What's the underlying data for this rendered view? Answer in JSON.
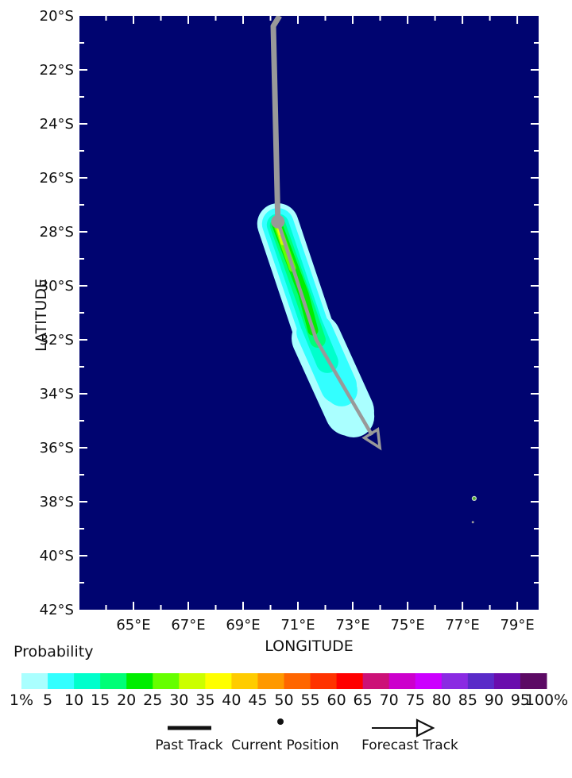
{
  "colors": {
    "page_bg": "#ffffff",
    "map_bg": "#000470",
    "track_gray": "#999999",
    "tick_white": "#ffffff",
    "text": "#111111"
  },
  "chart_data": {
    "type": "probability-swath-map",
    "xlabel": "LONGITUDE",
    "ylabel": "LATITUDE",
    "lon_axis": {
      "range": [
        63.03,
        79.78
      ],
      "minor_step": 1,
      "ticks": [
        {
          "deg": 65,
          "label": "65°E"
        },
        {
          "deg": 67,
          "label": "67°E"
        },
        {
          "deg": 69,
          "label": "69°E"
        },
        {
          "deg": 71,
          "label": "71°E"
        },
        {
          "deg": 73,
          "label": "73°E"
        },
        {
          "deg": 75,
          "label": "75°E"
        },
        {
          "deg": 77,
          "label": "77°E"
        },
        {
          "deg": 79,
          "label": "79°E"
        }
      ]
    },
    "lat_axis": {
      "range": [
        20,
        42
      ],
      "minor_step": 1,
      "ticks": [
        {
          "deg": 20,
          "label": "20°S"
        },
        {
          "deg": 22,
          "label": "22°S"
        },
        {
          "deg": 24,
          "label": "24°S"
        },
        {
          "deg": 26,
          "label": "26°S"
        },
        {
          "deg": 28,
          "label": "28°S"
        },
        {
          "deg": 30,
          "label": "30°S"
        },
        {
          "deg": 32,
          "label": "32°S"
        },
        {
          "deg": 34,
          "label": "34°S"
        },
        {
          "deg": 36,
          "label": "36°S"
        },
        {
          "deg": 38,
          "label": "38°S"
        },
        {
          "deg": 40,
          "label": "40°S"
        },
        {
          "deg": 42,
          "label": "42°S"
        }
      ]
    },
    "track": {
      "past_points": [
        [
          70.33,
          20.0
        ],
        [
          70.1,
          20.38
        ],
        [
          70.27,
          27.62
        ]
      ],
      "current_position": [
        70.27,
        27.62
      ],
      "forecast_points": [
        [
          70.27,
          27.62
        ],
        [
          71.67,
          32.0
        ],
        [
          73.7,
          35.53
        ]
      ],
      "arrow_tip": [
        73.99,
        36.0
      ]
    },
    "swath": {
      "layers": [
        {
          "probability_pct": 1,
          "color": "#aaffff",
          "width_deg": 1.51,
          "points": [
            [
              70.27,
              27.71
            ],
            [
              71.67,
              31.94
            ],
            [
              73.03,
              34.85
            ]
          ]
        },
        {
          "probability_pct": 1,
          "color": "#aaffff",
          "width_deg": 1.8,
          "points": [
            [
              71.67,
              31.94
            ],
            [
              72.88,
              34.65
            ]
          ]
        },
        {
          "probability_pct": 5,
          "color": "#33ffff",
          "width_deg": 1.16,
          "points": [
            [
              70.27,
              27.71
            ],
            [
              71.61,
              31.71
            ],
            [
              72.59,
              33.88
            ]
          ]
        },
        {
          "probability_pct": 5,
          "color": "#33ffff",
          "width_deg": 1.33,
          "points": [
            [
              71.61,
              31.71
            ],
            [
              72.48,
              33.7
            ]
          ]
        },
        {
          "probability_pct": 10,
          "color": "#00ffcc",
          "width_deg": 0.81,
          "points": [
            [
              70.27,
              27.74
            ],
            [
              71.49,
              31.41
            ],
            [
              72.07,
              32.82
            ]
          ]
        },
        {
          "probability_pct": 15,
          "color": "#00ff77",
          "width_deg": 0.58,
          "points": [
            [
              70.27,
              27.77
            ],
            [
              71.38,
              30.97
            ],
            [
              71.72,
              32.0
            ]
          ]
        },
        {
          "probability_pct": 20,
          "color": "#00ee00",
          "width_deg": 0.38,
          "points": [
            [
              70.24,
              27.74
            ],
            [
              71.2,
              30.29
            ],
            [
              71.55,
              31.65
            ]
          ]
        },
        {
          "probability_pct": 25,
          "color": "#66ff00",
          "width_deg": 0.26,
          "points": [
            [
              70.27,
              27.82
            ],
            [
              70.8,
              29.35
            ]
          ]
        },
        {
          "probability_pct": 30,
          "color": "#ccff00",
          "width_deg": 0.17,
          "points": [
            [
              70.3,
              27.88
            ],
            [
              70.45,
              28.41
            ]
          ]
        },
        {
          "probability_pct": 35,
          "color": "#ffff00",
          "width_deg": 0.12,
          "points": [
            [
              70.33,
              27.94
            ],
            [
              70.36,
              28.06
            ]
          ]
        }
      ]
    },
    "islands": [
      {
        "lon": 77.43,
        "lat": 37.88,
        "r": 2.5,
        "color": "#55aa33",
        "outline": "#ccddcc"
      },
      {
        "lon": 77.38,
        "lat": 38.76,
        "r": 1.5,
        "color": "#999999",
        "outline": "none"
      }
    ],
    "colorbar": {
      "title": "Probability",
      "colors": [
        "#aaffff",
        "#33ffff",
        "#00ffcc",
        "#00ff77",
        "#00ee00",
        "#66ff00",
        "#ccff00",
        "#ffff00",
        "#ffcc00",
        "#ff9900",
        "#ff6600",
        "#ff3300",
        "#ff0000",
        "#cc1177",
        "#cc00cc",
        "#cc00ff",
        "#8a2be2",
        "#5a2bc8",
        "#6a0dad",
        "#5c0a64"
      ],
      "labels": [
        "1%",
        "5",
        "10",
        "15",
        "20",
        "25",
        "30",
        "35",
        "40",
        "45",
        "50",
        "55",
        "60",
        "65",
        "70",
        "75",
        "80",
        "85",
        "90",
        "95",
        "100%"
      ]
    },
    "legend": {
      "past_track": "Past Track",
      "current_position": "Current Position",
      "forecast_track": "Forecast Track"
    }
  }
}
